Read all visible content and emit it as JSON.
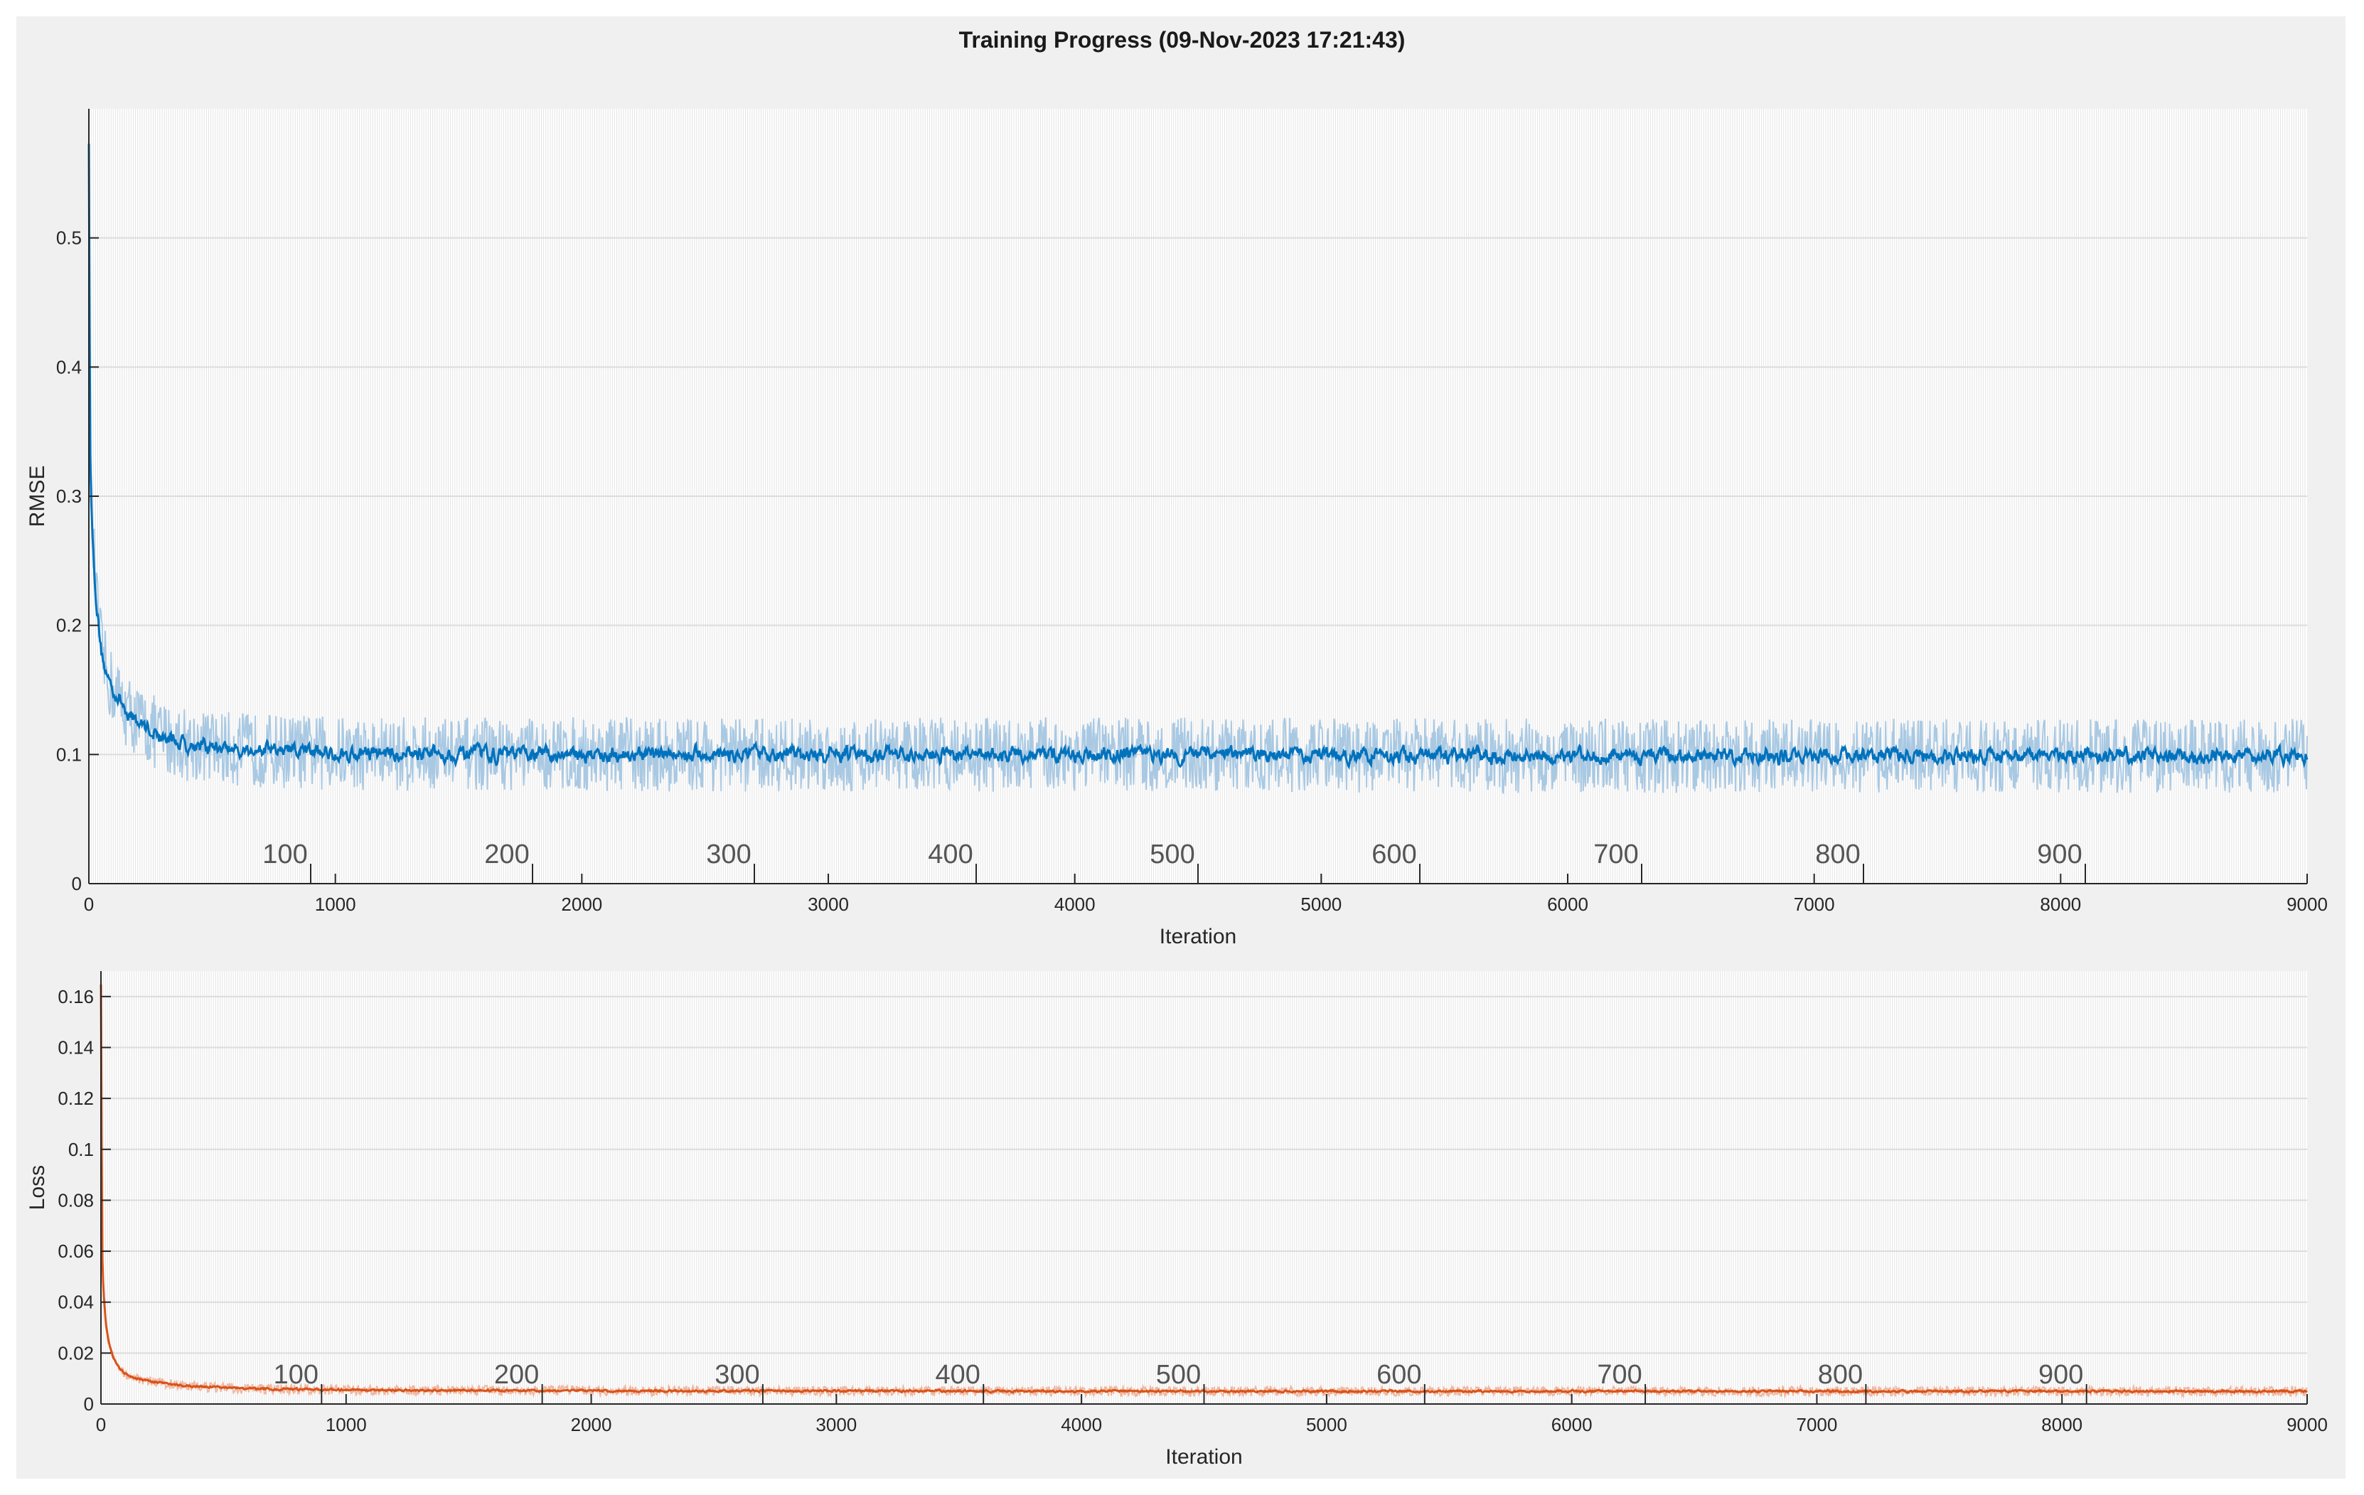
{
  "window": {
    "title": "Training Progress (09-Nov-2023 17:21:43)"
  },
  "colors": {
    "panel_bg": "#f0f0f0",
    "rmse_line": "#0072bd",
    "rmse_raw": "#a9c9e3",
    "loss_line": "#d95319",
    "loss_raw": "#f0b7a0",
    "grid": "#dcdcdc",
    "epoch_grid": "#e4e4e4"
  },
  "chart_data": [
    {
      "type": "line",
      "ylabel": "RMSE",
      "xlabel": "Iteration",
      "xlim": [
        0,
        9000
      ],
      "ylim": [
        0,
        0.6
      ],
      "xticks": [
        0,
        1000,
        2000,
        3000,
        4000,
        5000,
        6000,
        7000,
        8000,
        9000
      ],
      "yticks": [
        0,
        0.1,
        0.2,
        0.3,
        0.4,
        0.5
      ],
      "epoch_labels": [
        100,
        200,
        300,
        400,
        500,
        600,
        700,
        800,
        900
      ],
      "iterations_per_epoch": 9,
      "grid": true,
      "series": [
        {
          "style": "smoothed",
          "x": [
            0,
            5,
            10,
            20,
            30,
            50,
            75,
            100,
            150,
            200,
            300,
            400,
            600,
            1000,
            2000,
            4000,
            6000,
            9000
          ],
          "values": [
            0.57,
            0.35,
            0.29,
            0.25,
            0.22,
            0.18,
            0.16,
            0.15,
            0.135,
            0.125,
            0.113,
            0.108,
            0.104,
            0.101,
            0.1,
            0.1,
            0.099,
            0.099
          ]
        }
      ]
    },
    {
      "type": "line",
      "ylabel": "Loss",
      "xlabel": "Iteration",
      "xlim": [
        0,
        9000
      ],
      "ylim": [
        0,
        0.17
      ],
      "xticks": [
        0,
        1000,
        2000,
        3000,
        4000,
        5000,
        6000,
        7000,
        8000,
        9000
      ],
      "yticks": [
        0,
        0.02,
        0.04,
        0.06,
        0.08,
        0.1,
        0.12,
        0.14,
        0.16
      ],
      "epoch_labels": [
        100,
        200,
        300,
        400,
        500,
        600,
        700,
        800,
        900
      ],
      "iterations_per_epoch": 9,
      "grid": true,
      "series": [
        {
          "style": "smoothed",
          "x": [
            0,
            5,
            10,
            20,
            30,
            50,
            75,
            100,
            150,
            200,
            300,
            400,
            600,
            1000,
            2000,
            4000,
            6000,
            9000
          ],
          "values": [
            0.165,
            0.06,
            0.045,
            0.032,
            0.025,
            0.018,
            0.014,
            0.012,
            0.01,
            0.009,
            0.0075,
            0.0068,
            0.006,
            0.0055,
            0.0052,
            0.005,
            0.005,
            0.005
          ]
        }
      ]
    }
  ]
}
